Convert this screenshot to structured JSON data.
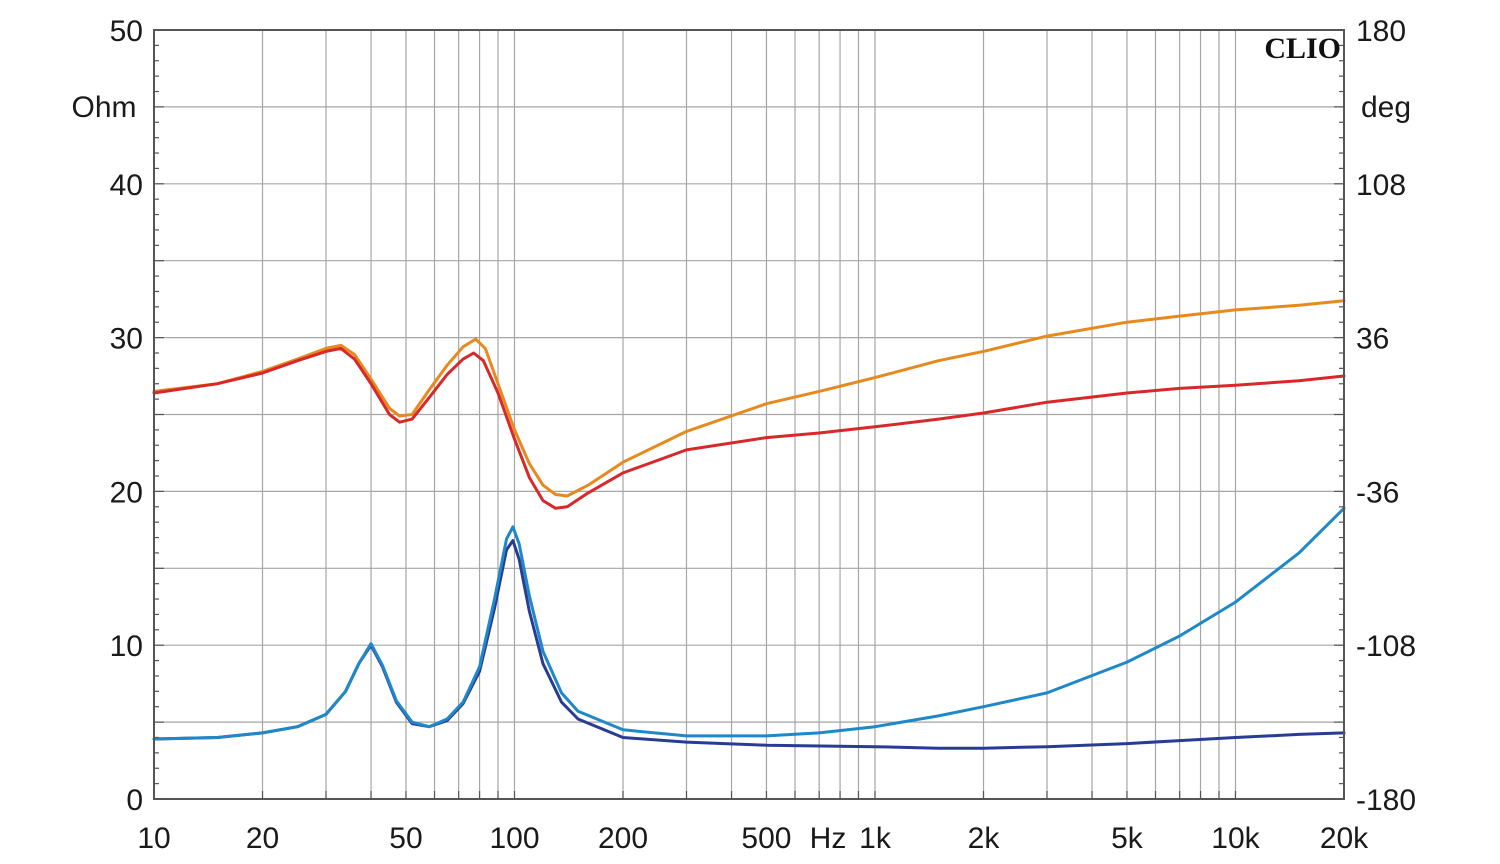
{
  "chart_data": {
    "type": "line",
    "brand": "CLIO",
    "x_unit": "Hz",
    "y_left_unit": "Ohm",
    "y_right_unit": "deg",
    "x_scale": "log",
    "xlim": [
      10,
      20000
    ],
    "ylim_left": [
      0,
      50
    ],
    "ylim_right": [
      -180,
      180
    ],
    "grid": true,
    "x_ticks": [
      {
        "value": 10,
        "label": "10"
      },
      {
        "value": 20,
        "label": "20"
      },
      {
        "value": 50,
        "label": "50"
      },
      {
        "value": 100,
        "label": "100"
      },
      {
        "value": 200,
        "label": "200"
      },
      {
        "value": 500,
        "label": "500"
      },
      {
        "value": 1000,
        "label": "1k"
      },
      {
        "value": 2000,
        "label": "2k"
      },
      {
        "value": 5000,
        "label": "5k"
      },
      {
        "value": 10000,
        "label": "10k"
      },
      {
        "value": 20000,
        "label": "20k"
      }
    ],
    "y_left_ticks": [
      {
        "value": 0,
        "label": "0"
      },
      {
        "value": 10,
        "label": "10"
      },
      {
        "value": 20,
        "label": "20"
      },
      {
        "value": 30,
        "label": "30"
      },
      {
        "value": 40,
        "label": "40"
      },
      {
        "value": 50,
        "label": "50"
      }
    ],
    "y_right_ticks": [
      {
        "value": -180,
        "label": "-180"
      },
      {
        "value": -108,
        "label": "-108"
      },
      {
        "value": -36,
        "label": "-36"
      },
      {
        "value": 36,
        "label": "36"
      },
      {
        "value": 108,
        "label": "108"
      },
      {
        "value": 180,
        "label": "180"
      }
    ],
    "series": [
      {
        "axis": "right",
        "color": "#e8891e",
        "points": [
          [
            10,
            26.5
          ],
          [
            15,
            27.0
          ],
          [
            20,
            27.8
          ],
          [
            25,
            28.6
          ],
          [
            30,
            29.3
          ],
          [
            33,
            29.5
          ],
          [
            36,
            28.9
          ],
          [
            40,
            27.3
          ],
          [
            45,
            25.4
          ],
          [
            48,
            24.9
          ],
          [
            52,
            25.0
          ],
          [
            58,
            26.6
          ],
          [
            65,
            28.2
          ],
          [
            72,
            29.4
          ],
          [
            78,
            29.9
          ],
          [
            83,
            29.3
          ],
          [
            90,
            27.0
          ],
          [
            100,
            24.0
          ],
          [
            110,
            21.8
          ],
          [
            120,
            20.4
          ],
          [
            130,
            19.8
          ],
          [
            140,
            19.7
          ],
          [
            160,
            20.4
          ],
          [
            200,
            21.9
          ],
          [
            300,
            23.9
          ],
          [
            500,
            25.7
          ],
          [
            700,
            26.5
          ],
          [
            1000,
            27.4
          ],
          [
            1500,
            28.5
          ],
          [
            2000,
            29.1
          ],
          [
            3000,
            30.1
          ],
          [
            5000,
            31.0
          ],
          [
            7000,
            31.4
          ],
          [
            10000,
            31.8
          ],
          [
            15000,
            32.1
          ],
          [
            20000,
            32.4
          ]
        ]
      },
      {
        "axis": "right",
        "color": "#d8282a",
        "points": [
          [
            10,
            26.4
          ],
          [
            15,
            27.0
          ],
          [
            20,
            27.7
          ],
          [
            25,
            28.5
          ],
          [
            30,
            29.1
          ],
          [
            33,
            29.3
          ],
          [
            36,
            28.6
          ],
          [
            40,
            27.0
          ],
          [
            45,
            25.0
          ],
          [
            48,
            24.5
          ],
          [
            52,
            24.7
          ],
          [
            58,
            26.1
          ],
          [
            65,
            27.6
          ],
          [
            72,
            28.6
          ],
          [
            77,
            29.0
          ],
          [
            82,
            28.5
          ],
          [
            90,
            26.4
          ],
          [
            100,
            23.4
          ],
          [
            110,
            20.9
          ],
          [
            120,
            19.4
          ],
          [
            130,
            18.9
          ],
          [
            140,
            19.0
          ],
          [
            160,
            19.9
          ],
          [
            200,
            21.2
          ],
          [
            300,
            22.7
          ],
          [
            500,
            23.5
          ],
          [
            700,
            23.8
          ],
          [
            1000,
            24.2
          ],
          [
            1500,
            24.7
          ],
          [
            2000,
            25.1
          ],
          [
            3000,
            25.8
          ],
          [
            5000,
            26.4
          ],
          [
            7000,
            26.7
          ],
          [
            10000,
            26.9
          ],
          [
            15000,
            27.2
          ],
          [
            20000,
            27.5
          ]
        ]
      },
      {
        "axis": "left",
        "color": "#283c94",
        "points": [
          [
            10,
            3.9
          ],
          [
            15,
            4.0
          ],
          [
            20,
            4.3
          ],
          [
            25,
            4.7
          ],
          [
            30,
            5.5
          ],
          [
            34,
            7.0
          ],
          [
            37,
            8.8
          ],
          [
            40,
            10.0
          ],
          [
            43,
            8.6
          ],
          [
            47,
            6.3
          ],
          [
            52,
            4.9
          ],
          [
            58,
            4.7
          ],
          [
            65,
            5.1
          ],
          [
            72,
            6.2
          ],
          [
            80,
            8.3
          ],
          [
            88,
            12.4
          ],
          [
            95,
            16.2
          ],
          [
            99,
            16.8
          ],
          [
            103,
            15.6
          ],
          [
            110,
            12.2
          ],
          [
            120,
            8.8
          ],
          [
            135,
            6.3
          ],
          [
            150,
            5.2
          ],
          [
            200,
            4.0
          ],
          [
            300,
            3.7
          ],
          [
            500,
            3.5
          ],
          [
            1000,
            3.4
          ],
          [
            1500,
            3.3
          ],
          [
            2000,
            3.3
          ],
          [
            3000,
            3.4
          ],
          [
            5000,
            3.6
          ],
          [
            7000,
            3.8
          ],
          [
            10000,
            4.0
          ],
          [
            15000,
            4.2
          ],
          [
            20000,
            4.3
          ]
        ]
      },
      {
        "axis": "left",
        "color": "#1f88c8",
        "points": [
          [
            10,
            3.9
          ],
          [
            15,
            4.0
          ],
          [
            20,
            4.3
          ],
          [
            25,
            4.7
          ],
          [
            30,
            5.5
          ],
          [
            34,
            7.0
          ],
          [
            37,
            8.8
          ],
          [
            40,
            10.1
          ],
          [
            43,
            8.7
          ],
          [
            47,
            6.4
          ],
          [
            52,
            5.0
          ],
          [
            58,
            4.7
          ],
          [
            65,
            5.2
          ],
          [
            72,
            6.3
          ],
          [
            80,
            8.6
          ],
          [
            88,
            13.0
          ],
          [
            95,
            16.9
          ],
          [
            99,
            17.7
          ],
          [
            103,
            16.6
          ],
          [
            110,
            13.2
          ],
          [
            120,
            9.6
          ],
          [
            135,
            6.9
          ],
          [
            150,
            5.7
          ],
          [
            200,
            4.5
          ],
          [
            300,
            4.1
          ],
          [
            500,
            4.1
          ],
          [
            700,
            4.3
          ],
          [
            1000,
            4.7
          ],
          [
            1500,
            5.4
          ],
          [
            2000,
            6.0
          ],
          [
            3000,
            6.9
          ],
          [
            5000,
            8.9
          ],
          [
            7000,
            10.6
          ],
          [
            10000,
            12.8
          ],
          [
            15000,
            16.0
          ],
          [
            20000,
            18.9
          ]
        ]
      }
    ]
  }
}
